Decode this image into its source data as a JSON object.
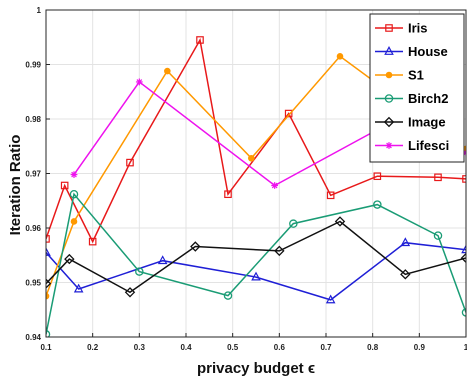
{
  "chart_data": {
    "type": "line",
    "title": "",
    "xlabel": "privacy budget ϵ",
    "ylabel": "Iteration Ratio",
    "xlim": [
      0.1,
      1.0
    ],
    "ylim": [
      0.94,
      1.0
    ],
    "xticks": [
      0.1,
      0.2,
      0.3,
      0.4,
      0.5,
      0.6,
      0.7,
      0.8,
      0.9,
      1.0
    ],
    "xtick_labels": [
      "0.1",
      "0.2",
      "0.3",
      "0.4",
      "0.5",
      "0.6",
      "0.7",
      "0.8",
      "0.9",
      "1"
    ],
    "yticks": [
      0.94,
      0.95,
      0.96,
      0.97,
      0.98,
      0.99,
      1.0
    ],
    "ytick_labels": [
      "0.94",
      "0.95",
      "0.96",
      "0.97",
      "0.98",
      "0.99",
      "1"
    ],
    "grid": true,
    "legend_position": "top-right",
    "series": [
      {
        "name": "Iris",
        "color": "#e8191a",
        "marker": "square",
        "x": [
          0.1,
          0.14,
          0.2,
          0.28,
          0.43,
          0.49,
          0.62,
          0.71,
          0.81,
          0.94,
          1.0
        ],
        "y": [
          0.958,
          0.9678,
          0.9575,
          0.972,
          0.9945,
          0.9662,
          0.981,
          0.966,
          0.9695,
          0.9693,
          0.969
        ]
      },
      {
        "name": "House",
        "color": "#1f1fd6",
        "marker": "triangle",
        "x": [
          0.1,
          0.17,
          0.35,
          0.55,
          0.71,
          0.87,
          1.0
        ],
        "y": [
          0.9555,
          0.9488,
          0.954,
          0.951,
          0.9468,
          0.9573,
          0.956
        ]
      },
      {
        "name": "S1",
        "color": "#ff9900",
        "marker": "circle-filled",
        "x": [
          0.1,
          0.16,
          0.36,
          0.54,
          0.73,
          1.0
        ],
        "y": [
          0.9475,
          0.9612,
          0.9888,
          0.9728,
          0.9915,
          0.9745
        ]
      },
      {
        "name": "Birch2",
        "color": "#1a9c75",
        "marker": "circle-open",
        "x": [
          0.1,
          0.16,
          0.3,
          0.49,
          0.63,
          0.81,
          0.94,
          1.0
        ],
        "y": [
          0.9405,
          0.9662,
          0.952,
          0.9476,
          0.9608,
          0.9643,
          0.9586,
          0.9445
        ]
      },
      {
        "name": "Image",
        "color": "#111111",
        "marker": "diamond",
        "x": [
          0.1,
          0.15,
          0.28,
          0.42,
          0.6,
          0.73,
          0.87,
          1.0
        ],
        "y": [
          0.9498,
          0.9543,
          0.9482,
          0.9566,
          0.9558,
          0.9612,
          0.9515,
          0.9545
        ]
      },
      {
        "name": "Lifesci",
        "color": "#ee12ee",
        "marker": "star",
        "x": [
          0.16,
          0.3,
          0.59,
          0.82,
          1.0
        ],
        "y": [
          0.9698,
          0.9868,
          0.9678,
          0.9785,
          0.9738
        ]
      }
    ]
  }
}
